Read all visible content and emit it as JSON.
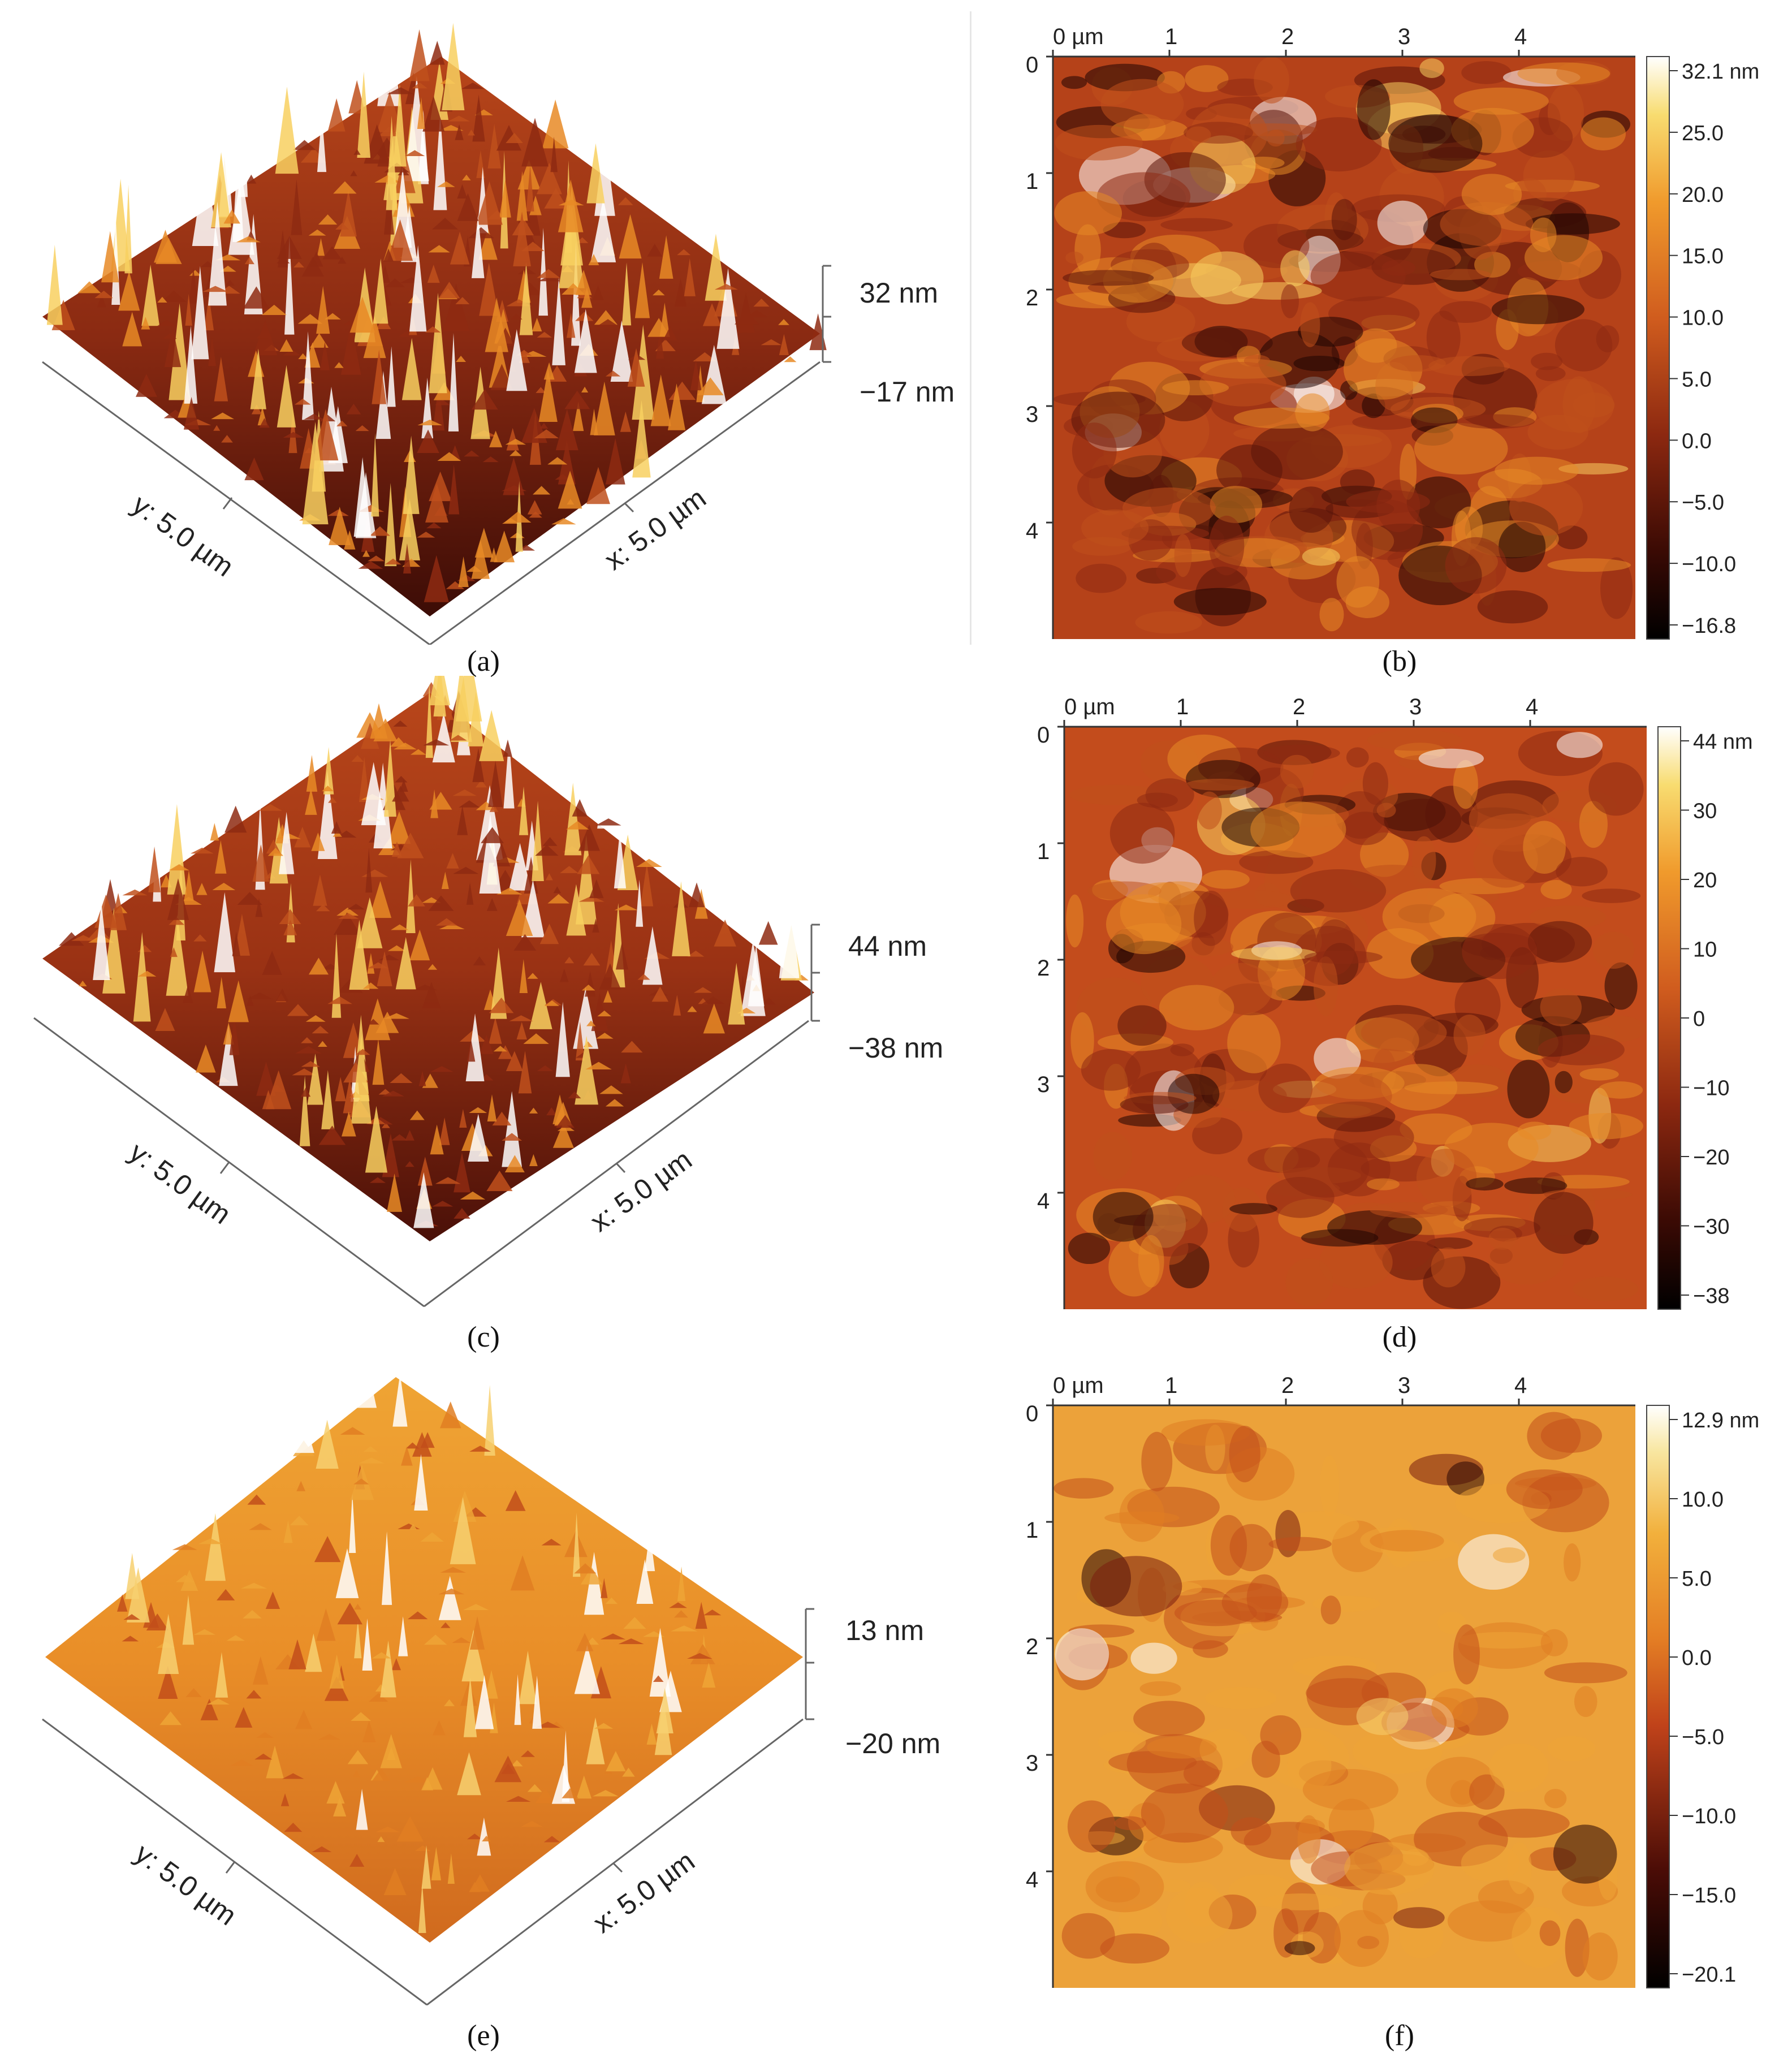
{
  "panels": [
    {
      "caption": "(a)",
      "kind": "3d",
      "z_top": "32 nm",
      "z_bottom": "−17 nm",
      "y_label": "y: 5.0 µm",
      "x_label": "x: 5.0 µm",
      "palette": [
        "#1e0402",
        "#5a140a",
        "#8e2a12",
        "#c0501c",
        "#e88a26",
        "#f8d060",
        "#ffffff"
      ]
    },
    {
      "caption": "(b)",
      "kind": "map",
      "x_ticks": [
        "0 µm",
        "1",
        "2",
        "3",
        "4"
      ],
      "y_ticks": [
        "0",
        "1",
        "2",
        "3",
        "4"
      ],
      "scale_labels": [
        "32.1 nm",
        "25.0",
        "20.0",
        "15.0",
        "10.0",
        "5.0",
        "0.0",
        "−5.0",
        "−10.0",
        "−16.8"
      ],
      "palette": [
        "#1e0402",
        "#5a140a",
        "#8e2a12",
        "#c0501c",
        "#e88a26",
        "#f8d060",
        "#ffffff"
      ]
    },
    {
      "caption": "(c)",
      "kind": "3d",
      "z_top": "44 nm",
      "z_bottom": "−38 nm",
      "y_label": "y: 5.0 µm",
      "x_label": "x: 5.0 µm",
      "palette": [
        "#1e0402",
        "#5a140a",
        "#8e2a12",
        "#c0501c",
        "#e88a26",
        "#f8d060",
        "#ffffff"
      ]
    },
    {
      "caption": "(d)",
      "kind": "map",
      "x_ticks": [
        "0 µm",
        "1",
        "2",
        "3",
        "4"
      ],
      "y_ticks": [
        "0",
        "1",
        "2",
        "3",
        "4"
      ],
      "scale_labels": [
        "44 nm",
        "30",
        "20",
        "10",
        "0",
        "−10",
        "−20",
        "−30",
        "−38"
      ],
      "palette": [
        "#1e0402",
        "#5a140a",
        "#8e2a12",
        "#c0501c",
        "#e88a26",
        "#f8d060",
        "#ffffff"
      ]
    },
    {
      "caption": "(e)",
      "kind": "3d",
      "z_top": "13 nm",
      "z_bottom": "−20 nm",
      "y_label": "y: 5.0 µm",
      "x_label": "x: 5.0 µm",
      "palette": [
        "#2a0604",
        "#7a1e0e",
        "#c24e1a",
        "#e07e22",
        "#efa436",
        "#f7d070",
        "#ffffff"
      ]
    },
    {
      "caption": "(f)",
      "kind": "map",
      "x_ticks": [
        "0 µm",
        "1",
        "2",
        "3",
        "4"
      ],
      "y_ticks": [
        "0",
        "1",
        "2",
        "3",
        "4"
      ],
      "scale_labels": [
        "12.9 nm",
        "10.0",
        "5.0",
        "0.0",
        "−5.0",
        "−10.0",
        "−15.0",
        "−20.1"
      ],
      "palette": [
        "#2a0604",
        "#7a1e0e",
        "#c24e1a",
        "#e07e22",
        "#efa436",
        "#f7d070",
        "#ffffff"
      ]
    }
  ]
}
